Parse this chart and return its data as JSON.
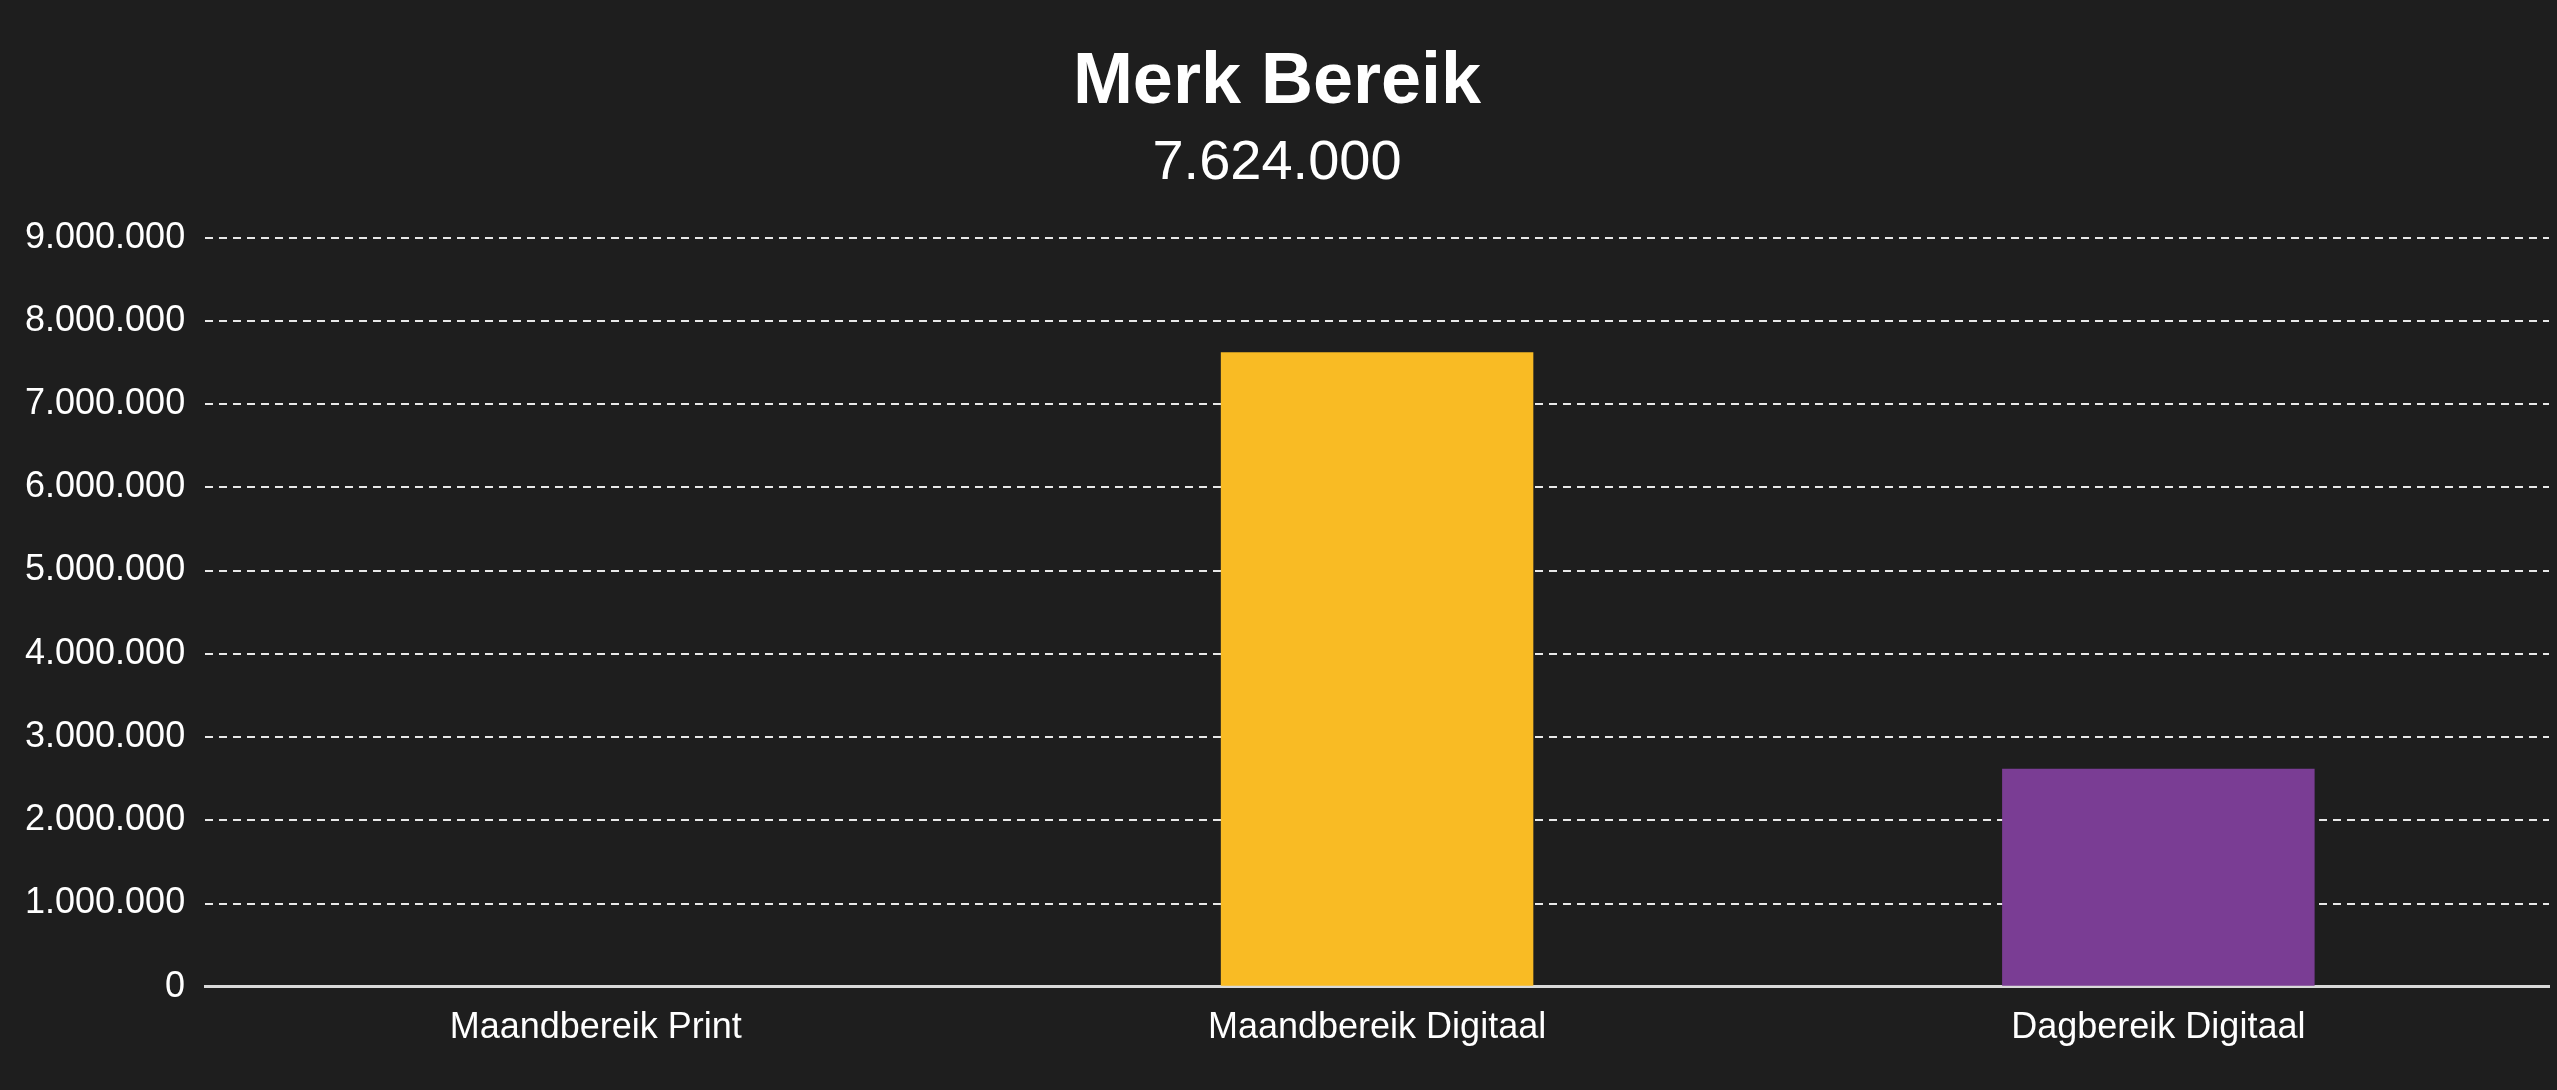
{
  "chart_data": {
    "type": "bar",
    "title": "Merk Bereik",
    "subtitle": "7.624.000",
    "categories": [
      "Maandbereik Print",
      "Maandbereik Digitaal",
      "Dagbereik Digitaal"
    ],
    "values": [
      0,
      7624000,
      2620000
    ],
    "colors": [
      "#4472c4",
      "#f9bb24",
      "#7a3d94"
    ],
    "ylim": [
      0,
      9000000
    ],
    "yticks": [
      {
        "value": 0,
        "label": "0"
      },
      {
        "value": 1000000,
        "label": "1.000.000"
      },
      {
        "value": 2000000,
        "label": "2.000.000"
      },
      {
        "value": 3000000,
        "label": "3.000.000"
      },
      {
        "value": 4000000,
        "label": "4.000.000"
      },
      {
        "value": 5000000,
        "label": "5.000.000"
      },
      {
        "value": 6000000,
        "label": "6.000.000"
      },
      {
        "value": 7000000,
        "label": "7.000.000"
      },
      {
        "value": 8000000,
        "label": "8.000.000"
      },
      {
        "value": 9000000,
        "label": "9.000.000"
      }
    ],
    "grid": "y",
    "legend": false
  }
}
